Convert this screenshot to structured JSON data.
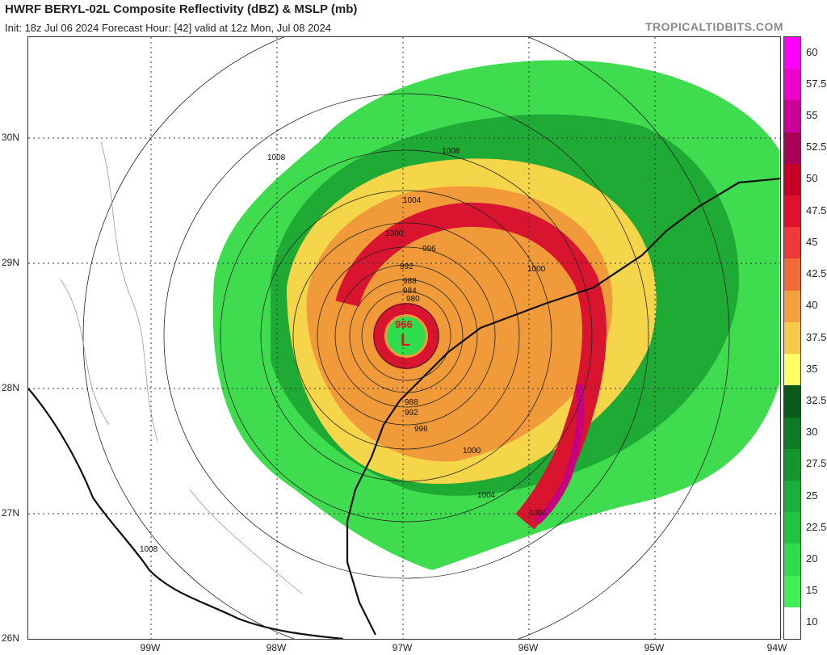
{
  "header": {
    "title": "HWRF BERYL-02L Composite Reflectivity (dBZ) & MSLP (mb)",
    "subtitle": "Init: 18z Jul 06 2024   Forecast Hour: [42]   valid at 12z Mon, Jul 08 2024",
    "site": "TROPICALTIDBITS.COM"
  },
  "axes": {
    "lat_labels": [
      "30N",
      "29N",
      "28N",
      "27N",
      "26N"
    ],
    "lon_labels": [
      "99W",
      "98W",
      "97W",
      "96W",
      "95W",
      "94W"
    ]
  },
  "storm": {
    "low_symbol": "L",
    "central_pressure": "966"
  },
  "isobar_labels": [
    "1008",
    "1004",
    "1000",
    "996",
    "992",
    "988",
    "984",
    "980",
    "988",
    "992",
    "996",
    "1000",
    "1004",
    "1004",
    "1000",
    "1008"
  ],
  "colorbar": {
    "labels": [
      "60",
      "57.5",
      "55",
      "52.5",
      "50",
      "47.5",
      "45",
      "42.5",
      "40",
      "37.5",
      "35",
      "32.5",
      "30",
      "27.5",
      "25",
      "22.5",
      "20",
      "15",
      "10"
    ],
    "colors": [
      "#ff00ff",
      "#ee00cc",
      "#cc0099",
      "#aa0055",
      "#c80028",
      "#e01030",
      "#f03a3a",
      "#f06a3a",
      "#f5a040",
      "#f7c84a",
      "#ffff66",
      "#0a5a1a",
      "#0e7a24",
      "#10962c",
      "#18b038",
      "#20c440",
      "#2fdc4c",
      "#40ee55",
      "#ffffff"
    ]
  }
}
